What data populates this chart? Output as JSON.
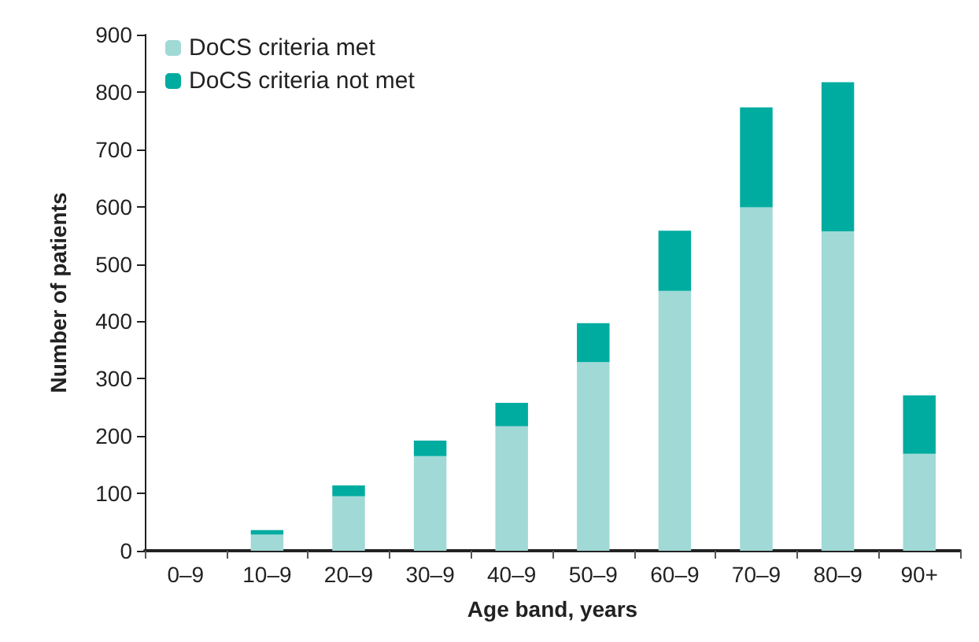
{
  "chart_data": {
    "type": "bar",
    "stacked": true,
    "xlabel": "Age band, years",
    "ylabel": "Number of patients",
    "categories": [
      "0–9",
      "10–9",
      "20–9",
      "30–9",
      "40–9",
      "50–9",
      "60–9",
      "70–9",
      "80–9",
      "90+"
    ],
    "series": [
      {
        "name": "DoCS criteria met",
        "color": "#a0d9d6",
        "values": [
          0,
          28,
          95,
          165,
          217,
          329,
          453,
          599,
          557,
          169
        ]
      },
      {
        "name": "DoCS criteria not met",
        "color": "#00aba0",
        "values": [
          0,
          8,
          19,
          27,
          41,
          68,
          105,
          174,
          260,
          102
        ]
      }
    ],
    "ylim": [
      0,
      900
    ],
    "yticks": [
      0,
      100,
      200,
      300,
      400,
      500,
      600,
      700,
      800,
      900
    ],
    "grid": false,
    "legend": "top left"
  }
}
